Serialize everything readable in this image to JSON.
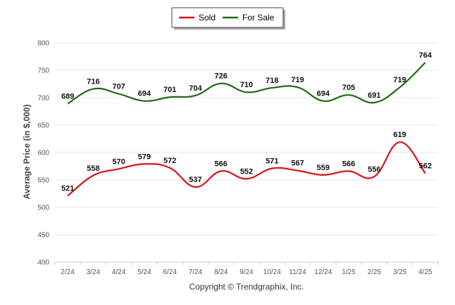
{
  "chart_data": {
    "type": "line",
    "title": "",
    "xlabel": "",
    "ylabel": "Average Price (in $,000)",
    "categories": [
      "2/24",
      "3/24",
      "4/24",
      "5/24",
      "6/24",
      "7/24",
      "8/24",
      "9/24",
      "10/24",
      "11/24",
      "12/24",
      "1/25",
      "2/25",
      "3/25",
      "4/25"
    ],
    "series": [
      {
        "name": "Sold",
        "color": "#dd1111",
        "values": [
          521,
          558,
          570,
          579,
          572,
          537,
          566,
          552,
          571,
          567,
          559,
          566,
          556,
          619,
          562
        ]
      },
      {
        "name": "For Sale",
        "color": "#1e6b12",
        "values": [
          689,
          716,
          707,
          694,
          701,
          704,
          726,
          710,
          718,
          719,
          694,
          705,
          691,
          719,
          764
        ]
      }
    ],
    "ylim": [
      400,
      800
    ],
    "yticks": [
      400,
      450,
      500,
      550,
      600,
      650,
      700,
      750,
      800
    ],
    "grid": true,
    "legend_position": "top-center",
    "credit": "Copyright © Trendgraphix, Inc."
  }
}
